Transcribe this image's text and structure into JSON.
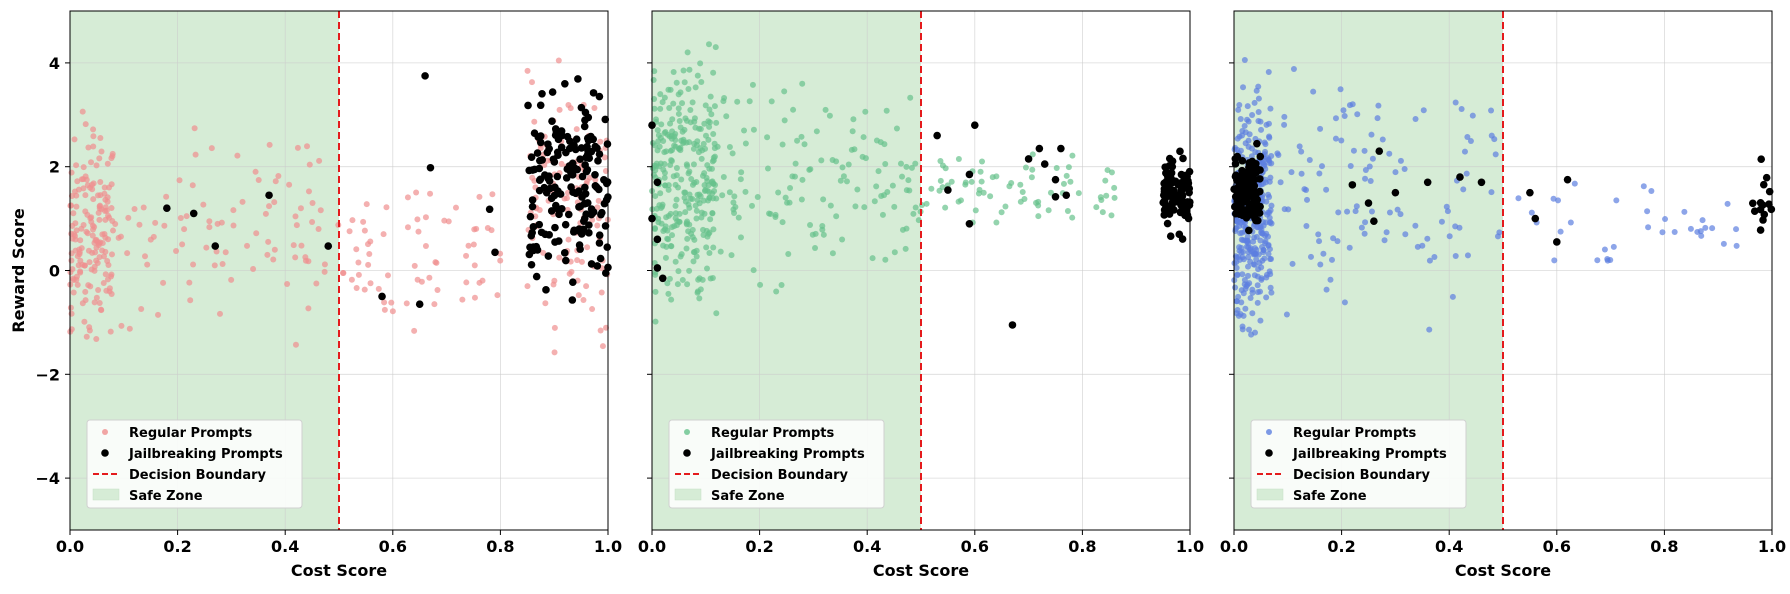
{
  "chart_data": [
    {
      "type": "scatter",
      "panel": "left",
      "xlabel": "Cost Score",
      "ylabel": "Reward Score",
      "xlim": [
        0,
        1
      ],
      "ylim": [
        -5,
        5
      ],
      "xticks": [
        0.0,
        0.2,
        0.4,
        0.6,
        0.8,
        1.0
      ],
      "xtick_labels": [
        "0.0",
        "0.2",
        "0.4",
        "0.6",
        "0.8",
        "1.0"
      ],
      "yticks": [
        -4,
        -2,
        0,
        2,
        4
      ],
      "ytick_labels": [
        "−4",
        "−2",
        "0",
        "2",
        "4"
      ],
      "grid": true,
      "legend_position": "lower-left",
      "decision_boundary": 0.5,
      "safe_zone": [
        0,
        0.5
      ],
      "regular_color": "#ef8f8f",
      "jailbreak_color": "#000000",
      "boundary_color": "#e41a1c",
      "safe_zone_color": "#d6ecd6",
      "series": [
        {
          "name": "Regular Prompts",
          "clusters": [
            {
              "x": [
                0.0,
                0.08
              ],
              "y": [
                -1.8,
                3.4
              ],
              "n": 170
            },
            {
              "x": [
                0.08,
                0.5
              ],
              "y": [
                -1.9,
                3.3
              ],
              "n": 90
            },
            {
              "x": [
                0.5,
                0.8
              ],
              "y": [
                -1.5,
                2.4
              ],
              "n": 65
            },
            {
              "x": [
                0.85,
                1.0
              ],
              "y": [
                -2.3,
                4.6
              ],
              "n": 120
            }
          ],
          "points": []
        },
        {
          "name": "Jailbreaking Prompts",
          "clusters": [
            {
              "x": [
                0.85,
                1.0
              ],
              "y": [
                -1.0,
                4.4
              ],
              "n": 180
            }
          ],
          "points": [
            [
              0.18,
              1.2
            ],
            [
              0.23,
              1.1
            ],
            [
              0.27,
              0.47
            ],
            [
              0.37,
              1.45
            ],
            [
              0.48,
              0.47
            ],
            [
              0.58,
              -0.5
            ],
            [
              0.65,
              -0.65
            ],
            [
              0.66,
              3.75
            ],
            [
              0.67,
              1.98
            ],
            [
              0.78,
              1.18
            ],
            [
              0.79,
              0.35
            ]
          ]
        }
      ]
    },
    {
      "type": "scatter",
      "panel": "middle",
      "xlabel": "Cost Score",
      "ylabel": "",
      "xlim": [
        0,
        1
      ],
      "ylim": [
        -5,
        5
      ],
      "xticks": [
        0.0,
        0.2,
        0.4,
        0.6,
        0.8,
        1.0
      ],
      "xtick_labels": [
        "0.0",
        "0.2",
        "0.4",
        "0.6",
        "0.8",
        "1.0"
      ],
      "yticks": [
        -4,
        -2,
        0,
        2,
        4
      ],
      "ytick_labels": [
        "",
        "",
        "",
        "",
        ""
      ],
      "grid": true,
      "legend_position": "lower-left",
      "decision_boundary": 0.5,
      "safe_zone": [
        0,
        0.5
      ],
      "regular_color": "#66c28c",
      "jailbreak_color": "#000000",
      "boundary_color": "#e41a1c",
      "safe_zone_color": "#d6ecd6",
      "series": [
        {
          "name": "Regular Prompts",
          "clusters": [
            {
              "x": [
                0.0,
                0.12
              ],
              "y": [
                -1.4,
                4.9
              ],
              "n": 300
            },
            {
              "x": [
                0.12,
                0.5
              ],
              "y": [
                -1.3,
                4.8
              ],
              "n": 130
            },
            {
              "x": [
                0.5,
                0.86
              ],
              "y": [
                0.5,
                2.6
              ],
              "n": 70
            }
          ],
          "points": []
        },
        {
          "name": "Jailbreaking Prompts",
          "clusters": [
            {
              "x": [
                0.95,
                1.0
              ],
              "y": [
                0.5,
                2.5
              ],
              "n": 100
            }
          ],
          "points": [
            [
              0.0,
              1.0
            ],
            [
              0.0,
              2.8
            ],
            [
              0.01,
              1.7
            ],
            [
              0.01,
              0.05
            ],
            [
              0.02,
              -0.15
            ],
            [
              0.01,
              0.6
            ],
            [
              0.53,
              2.6
            ],
            [
              0.55,
              1.55
            ],
            [
              0.59,
              0.9
            ],
            [
              0.59,
              1.85
            ],
            [
              0.6,
              2.8
            ],
            [
              0.67,
              -1.05
            ],
            [
              0.7,
              2.15
            ],
            [
              0.72,
              2.35
            ],
            [
              0.73,
              2.05
            ],
            [
              0.75,
              1.75
            ],
            [
              0.76,
              2.35
            ],
            [
              0.77,
              1.45
            ],
            [
              0.75,
              1.42
            ]
          ]
        }
      ]
    },
    {
      "type": "scatter",
      "panel": "right",
      "xlabel": "Cost Score",
      "ylabel": "",
      "xlim": [
        0,
        1
      ],
      "ylim": [
        -5,
        5
      ],
      "xticks": [
        0.0,
        0.2,
        0.4,
        0.6,
        0.8,
        1.0
      ],
      "xtick_labels": [
        "0.0",
        "0.2",
        "0.4",
        "0.6",
        "0.8",
        "1.0"
      ],
      "yticks": [
        -4,
        -2,
        0,
        2,
        4
      ],
      "ytick_labels": [
        "",
        "",
        "",
        "",
        ""
      ],
      "grid": true,
      "legend_position": "lower-left",
      "decision_boundary": 0.5,
      "safe_zone": [
        0,
        0.5
      ],
      "regular_color": "#5d7fe0",
      "jailbreak_color": "#000000",
      "boundary_color": "#e41a1c",
      "safe_zone_color": "#d6ecd6",
      "series": [
        {
          "name": "Regular Prompts",
          "clusters": [
            {
              "x": [
                0.0,
                0.07
              ],
              "y": [
                -1.9,
                4.3
              ],
              "n": 330
            },
            {
              "x": [
                0.07,
                0.5
              ],
              "y": [
                -1.4,
                4.7
              ],
              "n": 110
            },
            {
              "x": [
                0.5,
                0.96
              ],
              "y": [
                -0.8,
                2.4
              ],
              "n": 35
            }
          ],
          "points": []
        },
        {
          "name": "Jailbreaking Prompts",
          "clusters": [
            {
              "x": [
                0.0,
                0.05
              ],
              "y": [
                0.5,
                2.5
              ],
              "n": 120
            },
            {
              "x": [
                0.96,
                1.0
              ],
              "y": [
                0.5,
                2.3
              ],
              "n": 14
            }
          ],
          "points": [
            [
              0.22,
              1.65
            ],
            [
              0.25,
              1.3
            ],
            [
              0.26,
              0.95
            ],
            [
              0.27,
              2.3
            ],
            [
              0.3,
              1.5
            ],
            [
              0.36,
              1.7
            ],
            [
              0.42,
              1.8
            ],
            [
              0.46,
              1.7
            ],
            [
              0.55,
              1.5
            ],
            [
              0.56,
              1.0
            ],
            [
              0.6,
              0.55
            ],
            [
              0.62,
              1.75
            ]
          ]
        }
      ]
    }
  ],
  "legend": {
    "regular": "Regular Prompts",
    "jailbreak": "Jailbreaking Prompts",
    "boundary": "Decision Boundary",
    "safe": "Safe Zone"
  }
}
